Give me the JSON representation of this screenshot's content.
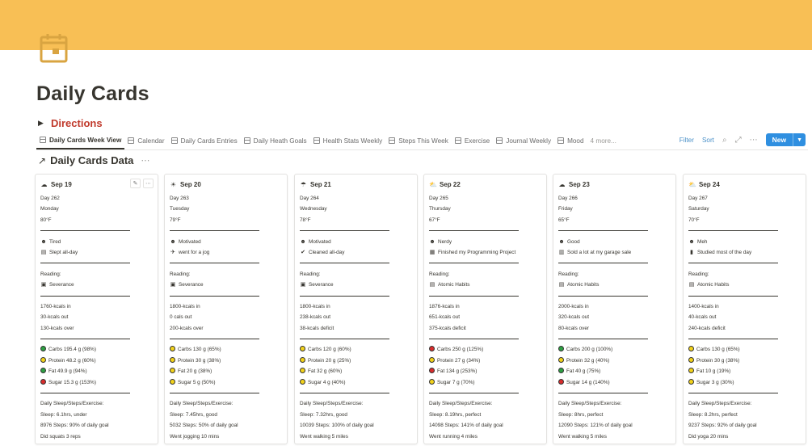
{
  "page": {
    "title": "Daily Cards",
    "cover_color": "#f8bf55",
    "icon": "calendar-icon",
    "icon_color": "#d9a441"
  },
  "directions": {
    "label": "Directions"
  },
  "tabs": [
    {
      "label": "Daily Cards Week View",
      "active": true
    },
    {
      "label": "Calendar"
    },
    {
      "label": "Daily Cards Entries"
    },
    {
      "label": "Daily Heath Goals"
    },
    {
      "label": "Health Stats Weekly"
    },
    {
      "label": "Steps This Week"
    },
    {
      "label": "Exercise"
    },
    {
      "label": "Journal Weekly"
    },
    {
      "label": "Mood"
    }
  ],
  "tabs_more": "4 more...",
  "toolbar": {
    "filter": "Filter",
    "sort": "Sort",
    "new": "New"
  },
  "database": {
    "title": "Daily Cards Data"
  },
  "labels": {
    "reading": "Reading:",
    "daily": "Daily Sleep/Steps/Exercise:"
  },
  "colors": {
    "green": "#2ea043",
    "yellow": "#f2d21b",
    "red": "#d92c2c"
  },
  "cards": [
    {
      "date": "Sep 19",
      "weather_icon": "cloudy-icon",
      "weather_glyph": "☁",
      "day": "Day 262",
      "weekday": "Monday",
      "temp": "80°F",
      "mood": "Tired",
      "mood_glyph": "☻",
      "activity": "Slept all-day",
      "activity_glyph": "▤",
      "reading": "Severance",
      "reading_glyph": "▣",
      "kcal_in": "1760-kcals in",
      "kcal_out": "30-kcals out",
      "kcal_net": "130-kcals over",
      "macros": [
        {
          "text": "Carbs 195.4 g (98%)",
          "color": "green"
        },
        {
          "text": "Protein 48.2 g (60%)",
          "color": "yellow"
        },
        {
          "text": "Fat 49.9 g (94%)",
          "color": "green"
        },
        {
          "text": "Sugar 15.3 g (153%)",
          "color": "red"
        }
      ],
      "sleep": "Sleep: 6.1hrs, under",
      "steps": "8976 Steps: 90% of daily goal",
      "exercise": "Did squats 3 reps"
    },
    {
      "date": "Sep 20",
      "weather_icon": "sunny-icon",
      "weather_glyph": "☀",
      "day": "Day 263",
      "weekday": "Tuesday",
      "temp": "79°F",
      "mood": "Motivated",
      "mood_glyph": "☻",
      "activity": "went for a jog",
      "activity_glyph": "✈",
      "reading": "Severance",
      "reading_glyph": "▣",
      "kcal_in": "1800-kcals in",
      "kcal_out": "0 cals out",
      "kcal_net": "200-kcals over",
      "macros": [
        {
          "text": "Carbs 130 g (65%)",
          "color": "yellow"
        },
        {
          "text": "Protein 30 g (38%)",
          "color": "yellow"
        },
        {
          "text": "Fat 20 g (38%)",
          "color": "yellow"
        },
        {
          "text": "Sugar 5 g (50%)",
          "color": "yellow"
        }
      ],
      "sleep": "Sleep: 7.45hrs, good",
      "steps": "5032 Steps: 50% of daily goal",
      "exercise": "Went jogging 10 mins"
    },
    {
      "date": "Sep 21",
      "weather_icon": "rain-cloud-icon",
      "weather_glyph": "☂",
      "day": "Day 264",
      "weekday": "Wednesday",
      "temp": "78°F",
      "mood": "Motivated",
      "mood_glyph": "☻",
      "activity": "Cleaned all-day",
      "activity_glyph": "✔",
      "reading": "Severance",
      "reading_glyph": "▣",
      "kcal_in": "1800-kcals in",
      "kcal_out": "238-kcals out",
      "kcal_net": "38-kcals deficit",
      "macros": [
        {
          "text": "Carbs 120 g (60%)",
          "color": "yellow"
        },
        {
          "text": "Protein 20 g (25%)",
          "color": "yellow"
        },
        {
          "text": "Fat 32 g (60%)",
          "color": "yellow"
        },
        {
          "text": "Sugar 4 g (40%)",
          "color": "yellow"
        }
      ],
      "sleep": "Sleep: 7.32hrs, good",
      "steps": "10039 Steps: 100% of daily goal",
      "exercise": "Went walking 5 miles"
    },
    {
      "date": "Sep 22",
      "weather_icon": "partly-cloudy-icon",
      "weather_glyph": "⛅",
      "day": "Day 265",
      "weekday": "Thursday",
      "temp": "67°F",
      "mood": "Nerdy",
      "mood_glyph": "☻",
      "activity": "Finished my Programming Project",
      "activity_glyph": "▦",
      "reading": "Atomic Habits",
      "reading_glyph": "▤",
      "kcal_in": "1876-kcals in",
      "kcal_out": "651-kcals out",
      "kcal_net": "375-kcals deficit",
      "macros": [
        {
          "text": "Carbs 250 g (125%)",
          "color": "red"
        },
        {
          "text": "Protein 27 g (34%)",
          "color": "yellow"
        },
        {
          "text": "Fat 134 g (253%)",
          "color": "red"
        },
        {
          "text": "Sugar 7 g (70%)",
          "color": "yellow"
        }
      ],
      "sleep": "Sleep: 8.19hrs, perfect",
      "steps": "14098 Steps: 141% of daily goal",
      "exercise": "Went running 4 miles"
    },
    {
      "date": "Sep 23",
      "weather_icon": "cloudy-icon",
      "weather_glyph": "☁",
      "day": "Day 266",
      "weekday": "Friday",
      "temp": "65°F",
      "mood": "Good",
      "mood_glyph": "☻",
      "activity": "Sold a lot at my garage sale",
      "activity_glyph": "▥",
      "reading": "Atomic Habits",
      "reading_glyph": "▤",
      "kcal_in": "2000-kcals in",
      "kcal_out": "320-kcals out",
      "kcal_net": "80-kcals over",
      "macros": [
        {
          "text": "Carbs 200 g (100%)",
          "color": "green"
        },
        {
          "text": "Protein 32 g (40%)",
          "color": "yellow"
        },
        {
          "text": "Fat 40 g (75%)",
          "color": "green"
        },
        {
          "text": "Sugar 14 g (140%)",
          "color": "red"
        }
      ],
      "sleep": "Sleep: 8hrs, perfect",
      "steps": "12090 Steps: 121% of daily goal",
      "exercise": "Went walking 5 miles"
    },
    {
      "date": "Sep 24",
      "weather_icon": "partly-cloudy-icon",
      "weather_glyph": "⛅",
      "day": "Day 267",
      "weekday": "Saturday",
      "temp": "70°F",
      "mood": "Meh",
      "mood_glyph": "☻",
      "activity": "Studied most of the day",
      "activity_glyph": "▮",
      "reading": "Atomic Habits",
      "reading_glyph": "▤",
      "kcal_in": "1400-kcals in",
      "kcal_out": "40-kcals out",
      "kcal_net": "240-kcals deficit",
      "macros": [
        {
          "text": "Carbs 130 g (65%)",
          "color": "yellow"
        },
        {
          "text": "Protein 30 g (38%)",
          "color": "yellow"
        },
        {
          "text": "Fat 10 g (19%)",
          "color": "yellow"
        },
        {
          "text": "Sugar 3 g (30%)",
          "color": "yellow"
        }
      ],
      "sleep": "Sleep: 8.2hrs, perfect",
      "steps": "9237 Steps: 92% of daily goal",
      "exercise": "Did yoga 20 mins"
    }
  ]
}
